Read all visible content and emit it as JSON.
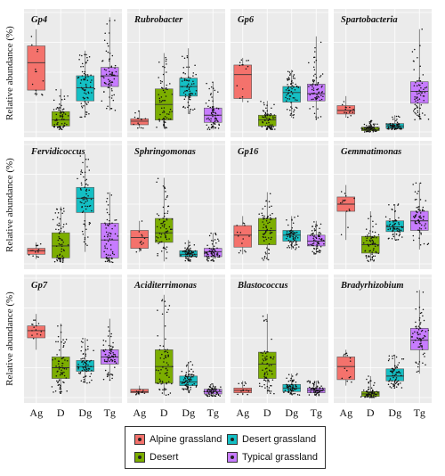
{
  "chart_data": {
    "type": "boxplot",
    "ylabel": "Relative abundance (%)",
    "categories": [
      "Ag",
      "D",
      "Dg",
      "Tg"
    ],
    "colors": {
      "Ag": "#f4726c",
      "D": "#7cae00",
      "Dg": "#14bfc4",
      "Tg": "#c77cff"
    },
    "legend": [
      {
        "label": "Alpine grassland",
        "group": "Ag"
      },
      {
        "label": "Desert grassland",
        "group": "Dg"
      },
      {
        "label": "Desert",
        "group": "D"
      },
      {
        "label": "Typical grassland",
        "group": "Tg"
      }
    ],
    "ylim": [
      0,
      100
    ],
    "panels": [
      {
        "title": "Gp4",
        "stats": [
          {
            "group": "Ag",
            "whisker_low": 30,
            "q1": 35,
            "median": 58,
            "q3": 72,
            "whisker_high": 86
          },
          {
            "group": "D",
            "whisker_low": 2,
            "q1": 5,
            "median": 10,
            "q3": 17,
            "whisker_high": 36
          },
          {
            "group": "Dg",
            "whisker_low": 12,
            "q1": 26,
            "median": 37,
            "q3": 47,
            "whisker_high": 68
          },
          {
            "group": "Tg",
            "whisker_low": 18,
            "q1": 38,
            "median": 47,
            "q3": 54,
            "whisker_high": 96
          }
        ]
      },
      {
        "title": "Rubrobacter",
        "stats": [
          {
            "group": "Ag",
            "whisker_low": 3,
            "q1": 6,
            "median": 9,
            "q3": 11,
            "whisker_high": 18
          },
          {
            "group": "D",
            "whisker_low": 3,
            "q1": 10,
            "median": 23,
            "q3": 36,
            "whisker_high": 66
          },
          {
            "group": "Dg",
            "whisker_low": 15,
            "q1": 30,
            "median": 38,
            "q3": 45,
            "whisker_high": 70
          },
          {
            "group": "Tg",
            "whisker_low": 2,
            "q1": 8,
            "median": 14,
            "q3": 20,
            "whisker_high": 42
          }
        ]
      },
      {
        "title": "Gp6",
        "stats": [
          {
            "group": "Ag",
            "whisker_low": 25,
            "q1": 28,
            "median": 48,
            "q3": 56,
            "whisker_high": 62
          },
          {
            "group": "D",
            "whisker_low": 2,
            "q1": 5,
            "median": 10,
            "q3": 14,
            "whisker_high": 26
          },
          {
            "group": "Dg",
            "whisker_low": 12,
            "q1": 25,
            "median": 33,
            "q3": 38,
            "whisker_high": 52
          },
          {
            "group": "Tg",
            "whisker_low": 10,
            "q1": 26,
            "median": 32,
            "q3": 40,
            "whisker_high": 80
          }
        ]
      },
      {
        "title": "Spartobacteria",
        "stats": [
          {
            "group": "Ag",
            "whisker_low": 12,
            "q1": 15,
            "median": 18,
            "q3": 22,
            "whisker_high": 30
          },
          {
            "group": "D",
            "whisker_low": 0,
            "q1": 1,
            "median": 2,
            "q3": 4,
            "whisker_high": 10
          },
          {
            "group": "Dg",
            "whisker_low": 2,
            "q1": 3,
            "median": 5,
            "q3": 7,
            "whisker_high": 14
          },
          {
            "group": "Tg",
            "whisker_low": 10,
            "q1": 24,
            "median": 34,
            "q3": 42,
            "whisker_high": 86
          }
        ]
      },
      {
        "title": "Fervidicoccus",
        "stats": [
          {
            "group": "Ag",
            "whisker_low": 4,
            "q1": 8,
            "median": 11,
            "q3": 13,
            "whisker_high": 18
          },
          {
            "group": "D",
            "whisker_low": 1,
            "q1": 5,
            "median": 15,
            "q3": 26,
            "whisker_high": 48
          },
          {
            "group": "Dg",
            "whisker_low": 10,
            "q1": 43,
            "median": 55,
            "q3": 64,
            "whisker_high": 92
          },
          {
            "group": "Tg",
            "whisker_low": 1,
            "q1": 5,
            "median": 20,
            "q3": 34,
            "whisker_high": 60
          }
        ]
      },
      {
        "title": "Sphringomonas",
        "stats": [
          {
            "group": "Ag",
            "whisker_low": 10,
            "q1": 13,
            "median": 22,
            "q3": 28,
            "whisker_high": 36
          },
          {
            "group": "D",
            "whisker_low": 2,
            "q1": 18,
            "median": 26,
            "q3": 38,
            "whisker_high": 72
          },
          {
            "group": "Dg",
            "whisker_low": 2,
            "q1": 6,
            "median": 8,
            "q3": 11,
            "whisker_high": 20
          },
          {
            "group": "Tg",
            "whisker_low": 2,
            "q1": 6,
            "median": 10,
            "q3": 13,
            "whisker_high": 26
          }
        ]
      },
      {
        "title": "Gp16",
        "stats": [
          {
            "group": "Ag",
            "whisker_low": 8,
            "q1": 14,
            "median": 24,
            "q3": 32,
            "whisker_high": 40
          },
          {
            "group": "D",
            "whisker_low": 3,
            "q1": 16,
            "median": 28,
            "q3": 38,
            "whisker_high": 60
          },
          {
            "group": "Dg",
            "whisker_low": 12,
            "q1": 19,
            "median": 24,
            "q3": 28,
            "whisker_high": 40
          },
          {
            "group": "Tg",
            "whisker_low": 8,
            "q1": 15,
            "median": 19,
            "q3": 24,
            "whisker_high": 36
          }
        ]
      },
      {
        "title": "Gemmatimonas",
        "stats": [
          {
            "group": "Ag",
            "whisker_low": 20,
            "q1": 44,
            "median": 50,
            "q3": 56,
            "whisker_high": 66
          },
          {
            "group": "D",
            "whisker_low": 2,
            "q1": 9,
            "median": 16,
            "q3": 23,
            "whisker_high": 44
          },
          {
            "group": "Dg",
            "whisker_low": 20,
            "q1": 27,
            "median": 31,
            "q3": 36,
            "whisker_high": 50
          },
          {
            "group": "Tg",
            "whisker_low": 12,
            "q1": 28,
            "median": 36,
            "q3": 44,
            "whisker_high": 68
          }
        ]
      },
      {
        "title": "Gp7",
        "stats": [
          {
            "group": "Ag",
            "whisker_low": 40,
            "q1": 50,
            "median": 56,
            "q3": 60,
            "whisker_high": 70
          },
          {
            "group": "D",
            "whisker_low": 3,
            "q1": 16,
            "median": 25,
            "q3": 34,
            "whisker_high": 62
          },
          {
            "group": "Dg",
            "whisker_low": 12,
            "q1": 22,
            "median": 26,
            "q3": 31,
            "whisker_high": 50
          },
          {
            "group": "Tg",
            "whisker_low": 14,
            "q1": 28,
            "median": 34,
            "q3": 40,
            "whisker_high": 66
          }
        ]
      },
      {
        "title": "Aciditerrimonas",
        "stats": [
          {
            "group": "Ag",
            "whisker_low": 2,
            "q1": 4,
            "median": 5,
            "q3": 7,
            "whisker_high": 10
          },
          {
            "group": "D",
            "whisker_low": 2,
            "q1": 12,
            "median": 26,
            "q3": 40,
            "whisker_high": 86
          },
          {
            "group": "Dg",
            "whisker_low": 4,
            "q1": 10,
            "median": 13,
            "q3": 18,
            "whisker_high": 30
          },
          {
            "group": "Tg",
            "whisker_low": 1,
            "q1": 3,
            "median": 5,
            "q3": 7,
            "whisker_high": 12
          }
        ]
      },
      {
        "title": "Blastococcus",
        "stats": [
          {
            "group": "Ag",
            "whisker_low": 2,
            "q1": 4,
            "median": 6,
            "q3": 8,
            "whisker_high": 14
          },
          {
            "group": "D",
            "whisker_low": 3,
            "q1": 16,
            "median": 28,
            "q3": 38,
            "whisker_high": 70
          },
          {
            "group": "Dg",
            "whisker_low": 2,
            "q1": 5,
            "median": 8,
            "q3": 11,
            "whisker_high": 20
          },
          {
            "group": "Tg",
            "whisker_low": 1,
            "q1": 4,
            "median": 6,
            "q3": 8,
            "whisker_high": 14
          }
        ]
      },
      {
        "title": "Bradyrhizobium",
        "stats": [
          {
            "group": "Ag",
            "whisker_low": 10,
            "q1": 15,
            "median": 26,
            "q3": 34,
            "whisker_high": 40
          },
          {
            "group": "D",
            "whisker_low": 0,
            "q1": 1,
            "median": 3,
            "q3": 5,
            "whisker_high": 18
          },
          {
            "group": "Dg",
            "whisker_low": 8,
            "q1": 14,
            "median": 18,
            "q3": 24,
            "whisker_high": 36
          },
          {
            "group": "Tg",
            "whisker_low": 20,
            "q1": 40,
            "median": 48,
            "q3": 58,
            "whisker_high": 90
          }
        ]
      }
    ]
  }
}
